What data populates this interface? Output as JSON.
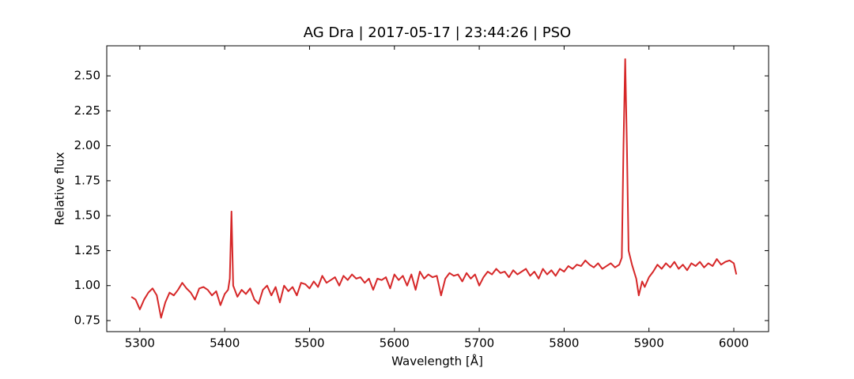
{
  "chart_data": {
    "type": "line",
    "title": "AG Dra | 2017-05-17 | 23:44:26 | PSO",
    "xlabel": "Wavelength [Å]",
    "ylabel": "Relative flux",
    "color": "#d62728",
    "grid": false,
    "xlim": [
      5261,
      6041
    ],
    "ylim": [
      0.671,
      2.715
    ],
    "xticks": [
      5300,
      5400,
      5500,
      5600,
      5700,
      5800,
      5900,
      6000
    ],
    "yticks": [
      0.75,
      {
        "value": 1.0,
        "label": "1.00"
      },
      1.25,
      {
        "value": 1.5,
        "label": "1.50"
      },
      1.75,
      {
        "value": 2.0,
        "label": "2.00"
      },
      2.25,
      {
        "value": 2.5,
        "label": "2.50"
      }
    ],
    "x": [
      5290,
      5295,
      5300,
      5305,
      5310,
      5315,
      5320,
      5325,
      5330,
      5335,
      5340,
      5345,
      5350,
      5355,
      5360,
      5365,
      5370,
      5375,
      5380,
      5385,
      5390,
      5395,
      5400,
      5404,
      5406,
      5408,
      5410,
      5415,
      5420,
      5425,
      5430,
      5435,
      5440,
      5445,
      5450,
      5455,
      5460,
      5465,
      5470,
      5475,
      5480,
      5485,
      5490,
      5495,
      5500,
      5505,
      5510,
      5515,
      5520,
      5525,
      5530,
      5535,
      5540,
      5545,
      5550,
      5555,
      5560,
      5565,
      5570,
      5575,
      5580,
      5585,
      5590,
      5595,
      5600,
      5605,
      5610,
      5615,
      5620,
      5625,
      5630,
      5635,
      5640,
      5645,
      5650,
      5655,
      5660,
      5665,
      5670,
      5675,
      5680,
      5685,
      5690,
      5695,
      5700,
      5705,
      5710,
      5715,
      5720,
      5725,
      5730,
      5735,
      5740,
      5745,
      5750,
      5755,
      5760,
      5765,
      5770,
      5775,
      5780,
      5785,
      5790,
      5795,
      5800,
      5805,
      5810,
      5815,
      5820,
      5825,
      5830,
      5835,
      5840,
      5845,
      5850,
      5855,
      5860,
      5865,
      5868,
      5870,
      5872,
      5874,
      5876,
      5880,
      5885,
      5888,
      5892,
      5895,
      5900,
      5905,
      5910,
      5915,
      5920,
      5925,
      5930,
      5935,
      5940,
      5945,
      5950,
      5955,
      5960,
      5965,
      5970,
      5975,
      5980,
      5985,
      5990,
      5995,
      6000,
      6003
    ],
    "values": [
      0.92,
      0.9,
      0.83,
      0.9,
      0.95,
      0.98,
      0.93,
      0.77,
      0.88,
      0.95,
      0.93,
      0.97,
      1.02,
      0.98,
      0.95,
      0.9,
      0.98,
      0.99,
      0.97,
      0.93,
      0.96,
      0.86,
      0.94,
      0.97,
      1.05,
      1.53,
      1.0,
      0.92,
      0.97,
      0.94,
      0.98,
      0.9,
      0.87,
      0.97,
      1.0,
      0.93,
      0.99,
      0.88,
      1.0,
      0.96,
      0.99,
      0.93,
      1.02,
      1.01,
      0.98,
      1.03,
      0.99,
      1.07,
      1.02,
      1.04,
      1.06,
      1.0,
      1.07,
      1.04,
      1.08,
      1.05,
      1.06,
      1.02,
      1.05,
      0.97,
      1.05,
      1.04,
      1.06,
      0.98,
      1.08,
      1.04,
      1.07,
      1.0,
      1.08,
      0.97,
      1.1,
      1.05,
      1.08,
      1.06,
      1.07,
      0.93,
      1.05,
      1.09,
      1.07,
      1.08,
      1.03,
      1.09,
      1.05,
      1.08,
      1.0,
      1.06,
      1.1,
      1.08,
      1.12,
      1.09,
      1.1,
      1.06,
      1.11,
      1.08,
      1.1,
      1.12,
      1.07,
      1.1,
      1.05,
      1.12,
      1.08,
      1.11,
      1.07,
      1.12,
      1.1,
      1.14,
      1.12,
      1.15,
      1.14,
      1.18,
      1.15,
      1.13,
      1.16,
      1.12,
      1.14,
      1.16,
      1.13,
      1.15,
      1.2,
      2.0,
      2.62,
      2.0,
      1.25,
      1.15,
      1.05,
      0.93,
      1.03,
      0.99,
      1.06,
      1.1,
      1.15,
      1.12,
      1.16,
      1.13,
      1.17,
      1.12,
      1.15,
      1.11,
      1.16,
      1.14,
      1.17,
      1.13,
      1.16,
      1.14,
      1.19,
      1.15,
      1.17,
      1.18,
      1.16,
      1.08
    ]
  }
}
